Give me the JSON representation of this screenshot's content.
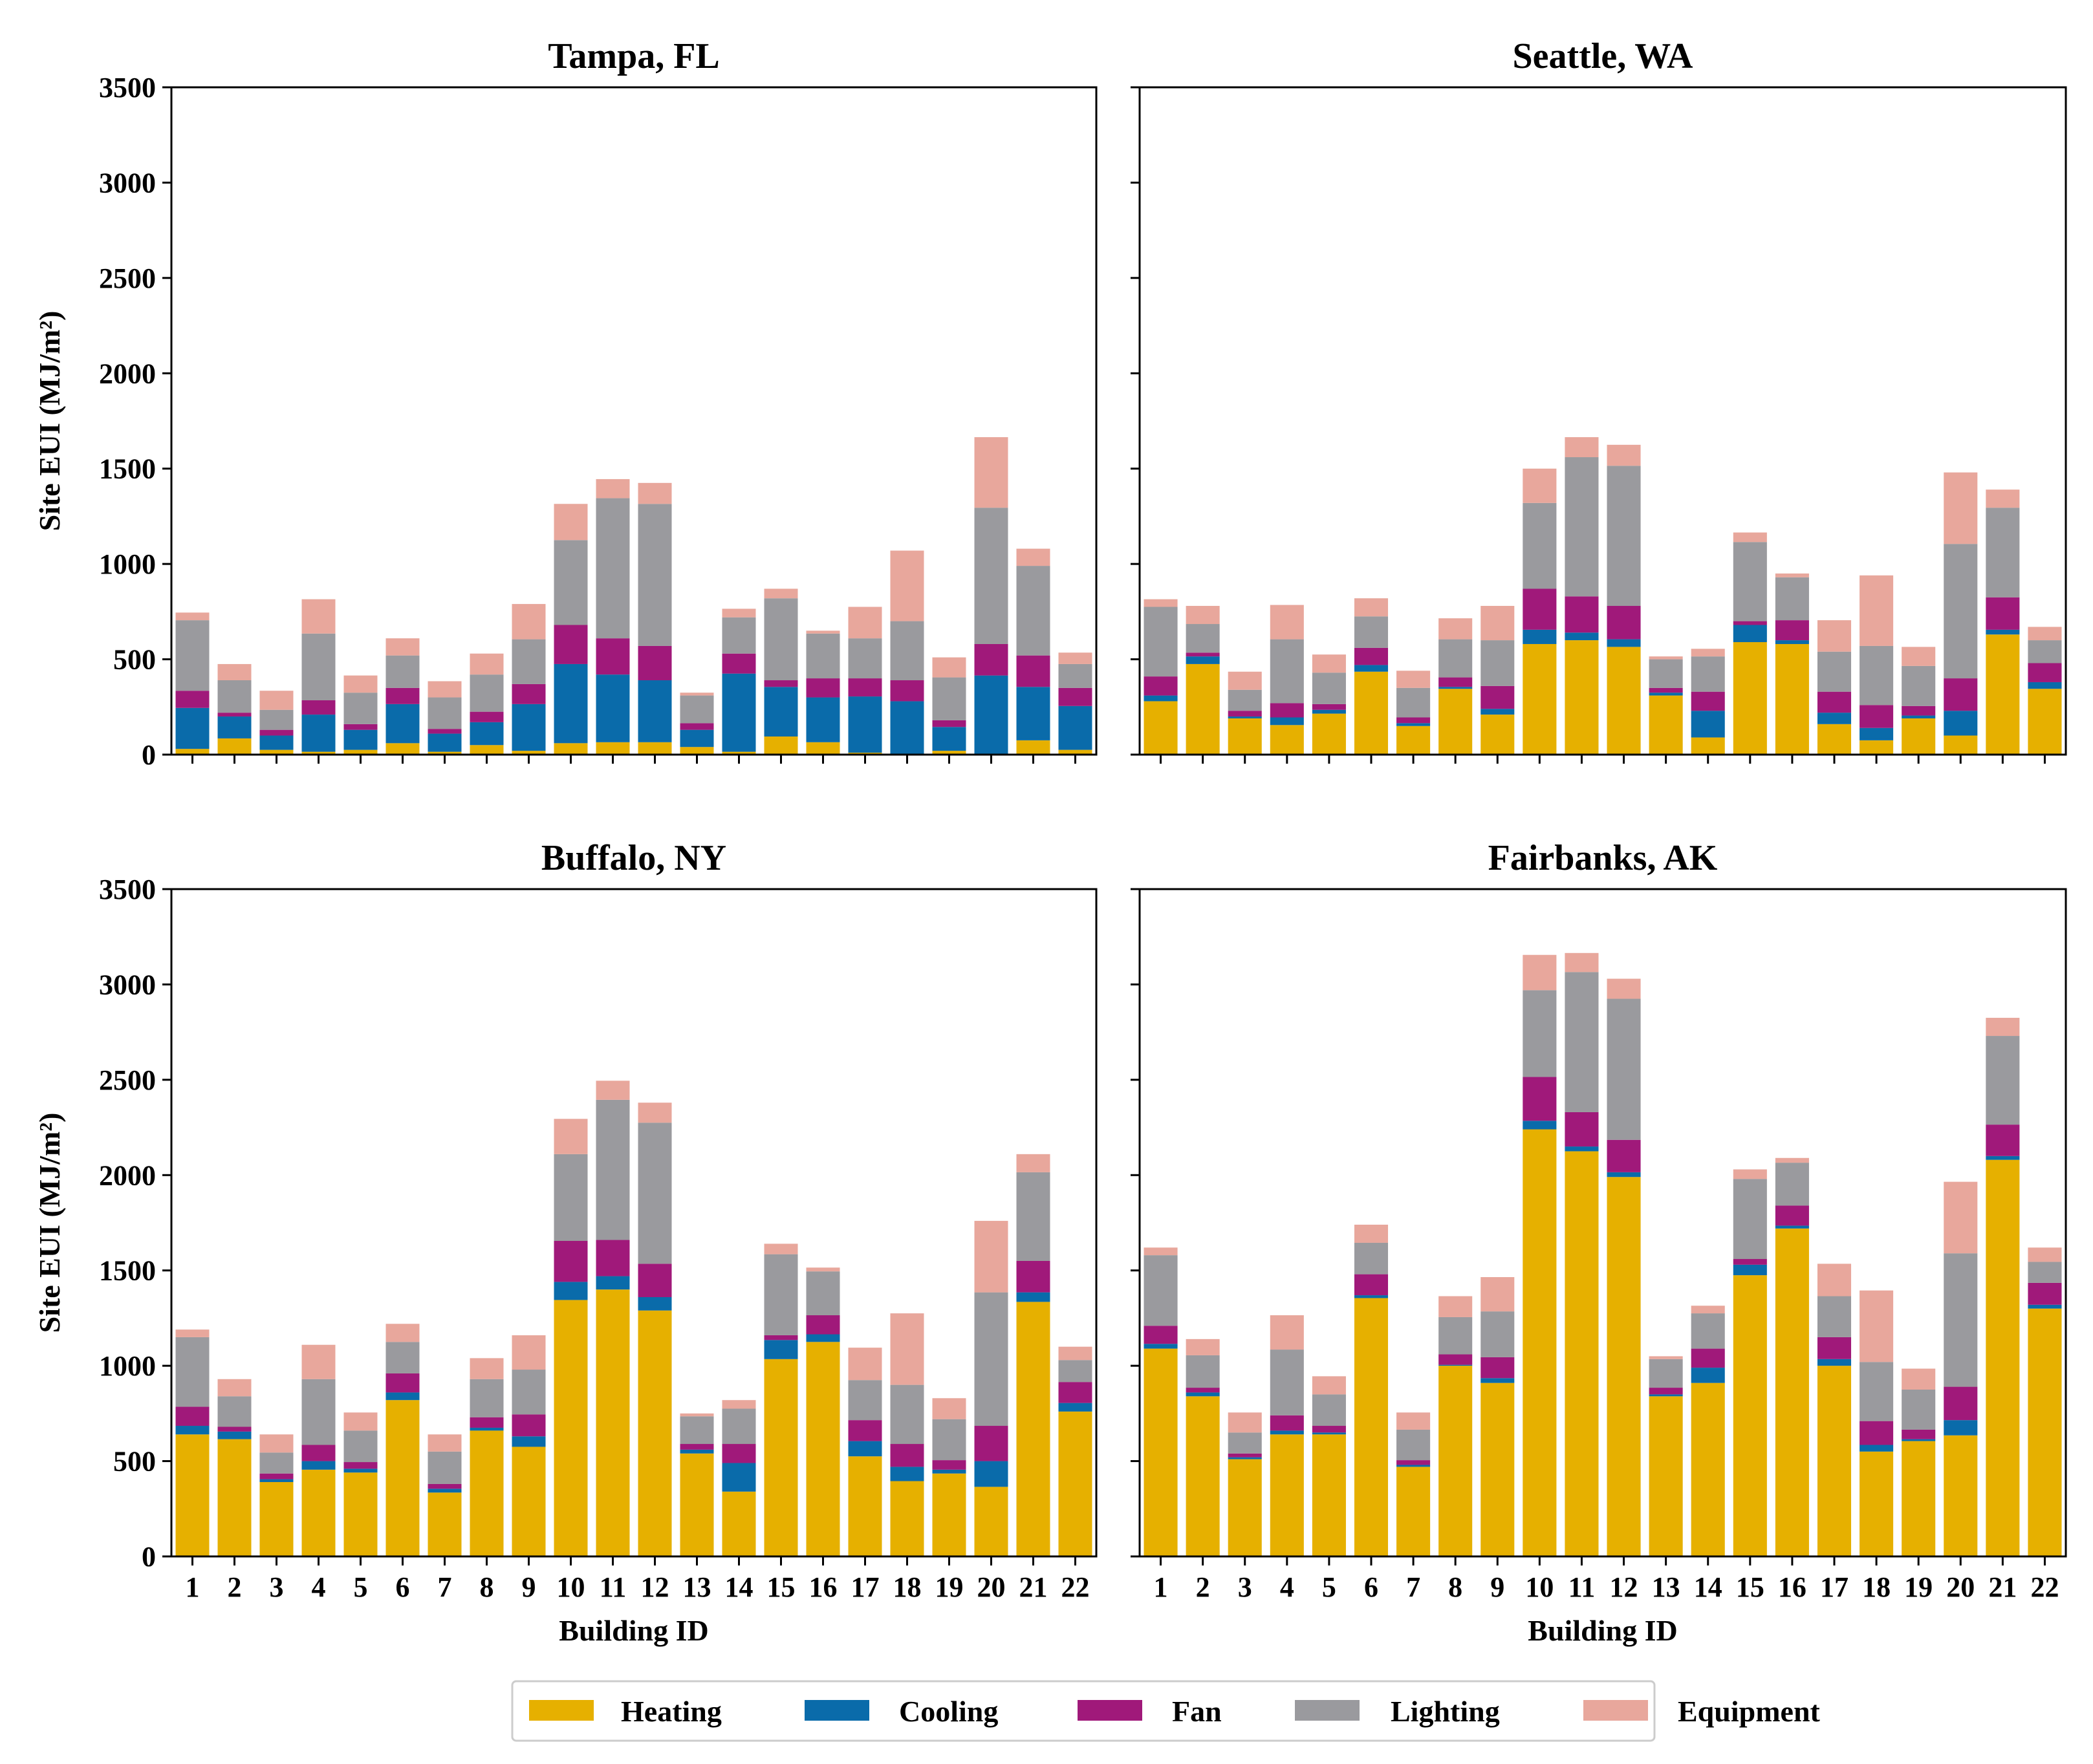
{
  "figure": {
    "legend_position": "bottom-center",
    "series_colors": {
      "Heating": "#E6B000",
      "Cooling": "#0A6BAA",
      "Fan": "#A0197A",
      "Lighting": "#9A9A9E",
      "Equipment": "#E8A79C"
    }
  },
  "chart_data": [
    {
      "type": "bar",
      "stacked": true,
      "title": "Tampa, FL",
      "xlabel": "",
      "ylabel": "Site EUI (MJ/m²)",
      "ylim": [
        0,
        3500
      ],
      "yticks": [
        "0",
        "500",
        "1000",
        "1500",
        "2000",
        "2500",
        "3000",
        "3500"
      ],
      "show_xticklabels": false,
      "show_yticklabels": true,
      "categories": [
        "1",
        "2",
        "3",
        "4",
        "5",
        "6",
        "7",
        "8",
        "9",
        "10",
        "11",
        "12",
        "13",
        "14",
        "15",
        "16",
        "17",
        "18",
        "19",
        "20",
        "21",
        "22"
      ],
      "series": [
        {
          "name": "Heating",
          "values": [
            30,
            85,
            25,
            15,
            25,
            60,
            15,
            50,
            20,
            60,
            65,
            65,
            40,
            15,
            95,
            65,
            10,
            5,
            20,
            5,
            75,
            25
          ]
        },
        {
          "name": "Cooling",
          "values": [
            215,
            115,
            75,
            195,
            105,
            205,
            95,
            120,
            245,
            415,
            355,
            325,
            90,
            410,
            260,
            235,
            295,
            275,
            125,
            410,
            280,
            230
          ]
        },
        {
          "name": "Fan",
          "values": [
            90,
            20,
            30,
            75,
            30,
            85,
            25,
            55,
            105,
            205,
            190,
            180,
            35,
            105,
            35,
            100,
            95,
            110,
            35,
            165,
            165,
            95
          ]
        },
        {
          "name": "Lighting",
          "values": [
            370,
            170,
            105,
            350,
            165,
            170,
            165,
            195,
            235,
            445,
            735,
            745,
            145,
            190,
            430,
            235,
            210,
            310,
            225,
            715,
            470,
            125
          ]
        },
        {
          "name": "Equipment",
          "values": [
            40,
            85,
            100,
            180,
            90,
            90,
            85,
            110,
            185,
            190,
            100,
            110,
            15,
            45,
            50,
            15,
            165,
            370,
            105,
            370,
            90,
            60
          ]
        }
      ]
    },
    {
      "type": "bar",
      "stacked": true,
      "title": "Seattle, WA",
      "xlabel": "",
      "ylabel": "",
      "ylim": [
        0,
        3500
      ],
      "show_xticklabels": false,
      "show_yticklabels": false,
      "categories": [
        "1",
        "2",
        "3",
        "4",
        "5",
        "6",
        "7",
        "8",
        "9",
        "10",
        "11",
        "12",
        "13",
        "14",
        "15",
        "16",
        "17",
        "18",
        "19",
        "20",
        "21",
        "22"
      ],
      "series": [
        {
          "name": "Heating",
          "values": [
            280,
            475,
            190,
            155,
            215,
            435,
            150,
            345,
            210,
            580,
            600,
            565,
            310,
            90,
            590,
            580,
            160,
            75,
            190,
            100,
            630,
            345
          ]
        },
        {
          "name": "Cooling",
          "values": [
            30,
            40,
            10,
            40,
            20,
            35,
            15,
            10,
            30,
            75,
            40,
            40,
            15,
            140,
            90,
            20,
            60,
            65,
            15,
            130,
            25,
            35
          ]
        },
        {
          "name": "Fan",
          "values": [
            100,
            20,
            30,
            75,
            30,
            90,
            30,
            50,
            120,
            215,
            190,
            175,
            25,
            100,
            20,
            105,
            110,
            120,
            50,
            170,
            170,
            100
          ]
        },
        {
          "name": "Lighting",
          "values": [
            365,
            150,
            110,
            335,
            165,
            165,
            155,
            200,
            240,
            450,
            730,
            735,
            150,
            185,
            415,
            225,
            210,
            310,
            210,
            705,
            470,
            120
          ]
        },
        {
          "name": "Equipment",
          "values": [
            40,
            95,
            95,
            180,
            95,
            95,
            90,
            110,
            180,
            180,
            105,
            110,
            15,
            40,
            50,
            20,
            165,
            370,
            100,
            375,
            95,
            70
          ]
        }
      ]
    },
    {
      "type": "bar",
      "stacked": true,
      "title": "Buffalo, NY",
      "xlabel": "Building ID",
      "ylabel": "Site EUI (MJ/m²)",
      "ylim": [
        0,
        3500
      ],
      "yticks": [
        "0",
        "500",
        "1000",
        "1500",
        "2000",
        "2500",
        "3000",
        "3500"
      ],
      "show_xticklabels": true,
      "show_yticklabels": true,
      "categories": [
        "1",
        "2",
        "3",
        "4",
        "5",
        "6",
        "7",
        "8",
        "9",
        "10",
        "11",
        "12",
        "13",
        "14",
        "15",
        "16",
        "17",
        "18",
        "19",
        "20",
        "21",
        "22"
      ],
      "series": [
        {
          "name": "Heating",
          "values": [
            640,
            615,
            390,
            455,
            440,
            820,
            335,
            660,
            575,
            1345,
            1400,
            1290,
            540,
            340,
            1035,
            1125,
            525,
            395,
            435,
            365,
            1335,
            760
          ]
        },
        {
          "name": "Cooling",
          "values": [
            45,
            40,
            15,
            45,
            20,
            40,
            20,
            15,
            55,
            95,
            70,
            70,
            20,
            150,
            100,
            40,
            80,
            75,
            20,
            135,
            50,
            45
          ]
        },
        {
          "name": "Fan",
          "values": [
            100,
            25,
            30,
            85,
            35,
            100,
            25,
            55,
            115,
            215,
            190,
            175,
            30,
            100,
            25,
            100,
            110,
            120,
            50,
            185,
            165,
            110
          ]
        },
        {
          "name": "Lighting",
          "values": [
            365,
            160,
            110,
            345,
            165,
            165,
            170,
            200,
            235,
            455,
            735,
            740,
            145,
            185,
            425,
            230,
            210,
            310,
            215,
            700,
            465,
            115
          ]
        },
        {
          "name": "Equipment",
          "values": [
            40,
            90,
            95,
            180,
            95,
            95,
            90,
            110,
            180,
            185,
            100,
            105,
            15,
            45,
            55,
            20,
            170,
            375,
            110,
            375,
            95,
            70
          ]
        }
      ]
    },
    {
      "type": "bar",
      "stacked": true,
      "title": "Fairbanks, AK",
      "xlabel": "Building ID",
      "ylabel": "",
      "ylim": [
        0,
        3500
      ],
      "show_xticklabels": true,
      "show_yticklabels": false,
      "categories": [
        "1",
        "2",
        "3",
        "4",
        "5",
        "6",
        "7",
        "8",
        "9",
        "10",
        "11",
        "12",
        "13",
        "14",
        "15",
        "16",
        "17",
        "18",
        "19",
        "20",
        "21",
        "22"
      ],
      "series": [
        {
          "name": "Heating",
          "values": [
            1090,
            840,
            510,
            640,
            640,
            1355,
            470,
            1000,
            910,
            2240,
            2125,
            1990,
            840,
            910,
            1475,
            1720,
            1000,
            550,
            605,
            635,
            2080,
            1300
          ]
        },
        {
          "name": "Cooling",
          "values": [
            25,
            20,
            10,
            20,
            10,
            15,
            10,
            5,
            25,
            45,
            25,
            25,
            10,
            80,
            55,
            15,
            35,
            35,
            10,
            80,
            20,
            20
          ]
        },
        {
          "name": "Fan",
          "values": [
            95,
            25,
            20,
            80,
            35,
            110,
            25,
            55,
            110,
            230,
            180,
            170,
            35,
            100,
            30,
            105,
            115,
            125,
            50,
            175,
            165,
            115
          ]
        },
        {
          "name": "Lighting",
          "values": [
            370,
            170,
            110,
            345,
            165,
            165,
            160,
            195,
            240,
            455,
            735,
            740,
            150,
            185,
            420,
            225,
            215,
            310,
            210,
            700,
            465,
            110
          ]
        },
        {
          "name": "Equipment",
          "values": [
            40,
            85,
            105,
            180,
            95,
            95,
            90,
            110,
            180,
            185,
            100,
            105,
            15,
            40,
            50,
            25,
            170,
            375,
            110,
            375,
            95,
            75
          ]
        }
      ]
    }
  ]
}
